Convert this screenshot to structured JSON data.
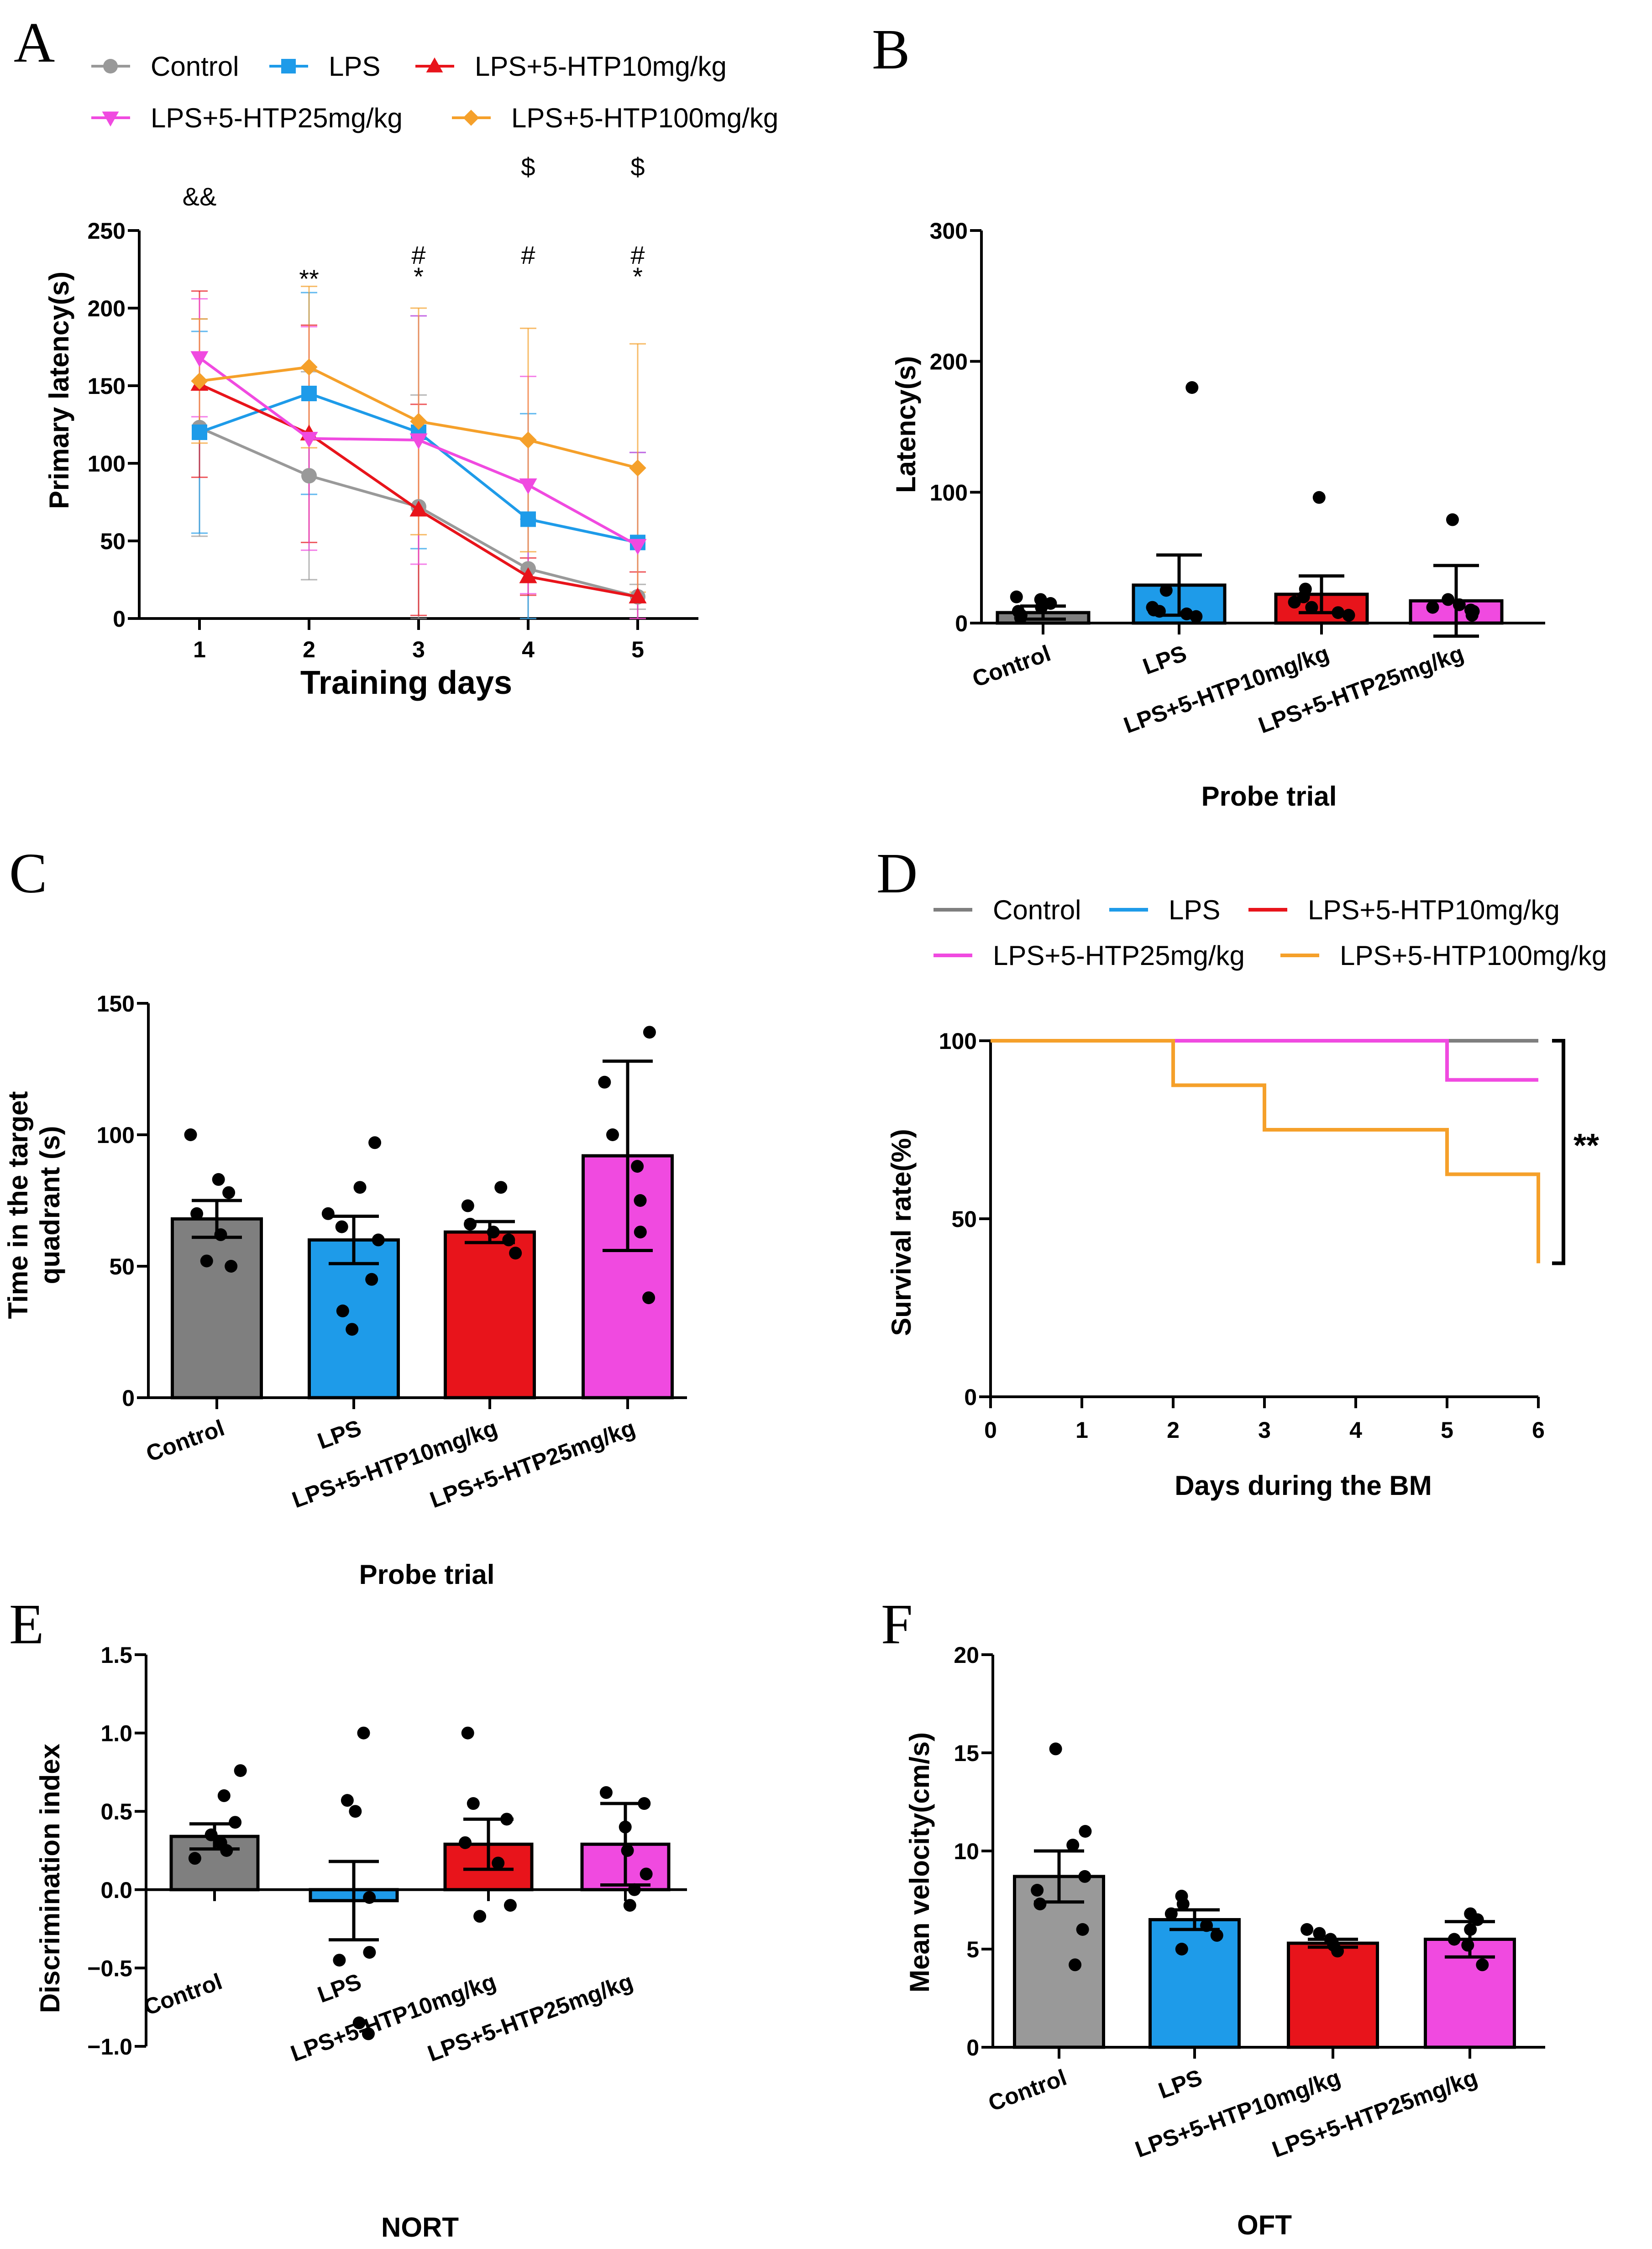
{
  "chart_data": [
    {
      "id": "A",
      "type": "line",
      "panel_label": "A",
      "xlabel": "Training days",
      "ylabel": "Primary latency(s)",
      "ylim": [
        0,
        250
      ],
      "yticks": [
        0,
        50,
        100,
        150,
        200,
        250
      ],
      "x": [
        1,
        2,
        3,
        4,
        5
      ],
      "series": [
        {
          "name": "Control",
          "color": "#999999",
          "marker": "circle",
          "values": [
            123,
            92,
            72,
            32,
            14
          ],
          "err": [
            70,
            67,
            72,
            32,
            8
          ]
        },
        {
          "name": "LPS",
          "color": "#1e9be9",
          "marker": "square",
          "values": [
            120,
            145,
            120,
            64,
            49
          ],
          "err": [
            65,
            65,
            75,
            68,
            58
          ]
        },
        {
          "name": "LPS+5-HTP10mg/kg",
          "color": "#e8141b",
          "marker": "triangle",
          "values": [
            151,
            119,
            70,
            27,
            14
          ],
          "err": [
            60,
            70,
            68,
            12,
            16
          ]
        },
        {
          "name": "LPS+5-HTP25mg/kg",
          "color": "#f04ae0",
          "marker": "triangle-down",
          "values": [
            168,
            116,
            115,
            86,
            47
          ],
          "err": [
            38,
            72,
            80,
            70,
            60
          ]
        },
        {
          "name": "LPS+5-HTP100mg/kg",
          "color": "#f5a02a",
          "marker": "diamond",
          "values": [
            153,
            162,
            127,
            115,
            97
          ],
          "err": [
            40,
            52,
            73,
            72,
            80
          ]
        }
      ],
      "annotations": [
        {
          "x": 1,
          "row": 1,
          "text": "&&"
        },
        {
          "x": 2,
          "row": 2,
          "text": "**"
        },
        {
          "x": 3,
          "row": 2,
          "text": "#"
        },
        {
          "x": 3,
          "row": 3,
          "text": "*"
        },
        {
          "x": 4,
          "row": 0,
          "text": "$"
        },
        {
          "x": 4,
          "row": 2,
          "text": "#"
        },
        {
          "x": 5,
          "row": 0,
          "text": "$"
        },
        {
          "x": 5,
          "row": 2,
          "text": "#"
        },
        {
          "x": 5,
          "row": 3,
          "text": "*"
        }
      ]
    },
    {
      "id": "B",
      "type": "bar",
      "panel_label": "B",
      "xlabel": "Probe trial",
      "ylabel": "Latency(s)",
      "ylim": [
        0,
        300
      ],
      "yticks": [
        0,
        100,
        200,
        300
      ],
      "categories": [
        "Control",
        "LPS",
        "LPS+5-HTP10mg/kg",
        "LPS+5-HTP25mg/kg"
      ],
      "colors": [
        "#7f7f7f",
        "#1e9be9",
        "#e8141b",
        "#f04ae0"
      ],
      "values": [
        8,
        29,
        22,
        17
      ],
      "err": [
        5,
        23,
        14,
        27
      ],
      "points": [
        [
          4,
          6,
          9,
          12,
          15,
          18,
          20
        ],
        [
          5,
          7,
          9,
          10,
          12,
          25,
          180
        ],
        [
          6,
          8,
          12,
          16,
          20,
          26,
          96
        ],
        [
          6,
          9,
          10,
          12,
          14,
          18,
          79
        ]
      ]
    },
    {
      "id": "C",
      "type": "bar",
      "panel_label": "C",
      "xlabel": "Probe trial",
      "ylabel": "Time in the target quadrant (s)",
      "ylabel_lines": [
        "Time in the target",
        "quadrant (s)"
      ],
      "ylim": [
        0,
        150
      ],
      "yticks": [
        0,
        50,
        100,
        150
      ],
      "categories": [
        "Control",
        "LPS",
        "LPS+5-HTP10mg/kg",
        "LPS+5-HTP25mg/kg"
      ],
      "colors": [
        "#7f7f7f",
        "#1e9be9",
        "#e8141b",
        "#f04ae0"
      ],
      "values": [
        68,
        60,
        63,
        92
      ],
      "err": [
        7,
        9,
        4,
        36
      ],
      "points": [
        [
          50,
          52,
          62,
          70,
          78,
          83,
          100
        ],
        [
          26,
          33,
          45,
          60,
          65,
          70,
          80,
          97
        ],
        [
          55,
          60,
          63,
          66,
          73,
          80
        ],
        [
          38,
          63,
          75,
          88,
          100,
          120,
          139
        ]
      ]
    },
    {
      "id": "D",
      "type": "line",
      "subtype": "survival",
      "panel_label": "D",
      "xlabel": "Days during the BM",
      "ylabel": "Survival rate(%)",
      "ylim": [
        0,
        100
      ],
      "yticks": [
        0,
        50,
        100
      ],
      "xlim": [
        0,
        6
      ],
      "xticks": [
        0,
        1,
        2,
        3,
        4,
        5,
        6
      ],
      "series": [
        {
          "name": "Control",
          "color": "#7f7f7f",
          "steps": [
            [
              0,
              100
            ],
            [
              6,
              100
            ]
          ]
        },
        {
          "name": "LPS",
          "color": "#1e9be9",
          "steps": [
            [
              0,
              100
            ],
            [
              6,
              100
            ]
          ]
        },
        {
          "name": "LPS+5-HTP10mg/kg",
          "color": "#e8141b",
          "steps": [
            [
              0,
              100
            ],
            [
              6,
              100
            ]
          ]
        },
        {
          "name": "LPS+5-HTP25mg/kg",
          "color": "#f04ae0",
          "steps": [
            [
              0,
              100
            ],
            [
              5,
              100
            ],
            [
              5,
              89
            ],
            [
              6,
              89
            ]
          ]
        },
        {
          "name": "LPS+5-HTP100mg/kg",
          "color": "#f5a02a",
          "steps": [
            [
              0,
              100
            ],
            [
              2,
              100
            ],
            [
              2,
              87.5
            ],
            [
              3,
              87.5
            ],
            [
              3,
              75
            ],
            [
              5,
              75
            ],
            [
              5,
              62.5
            ],
            [
              6,
              62.5
            ],
            [
              6,
              37.5
            ]
          ]
        }
      ],
      "bracket": {
        "from": 100,
        "to": 37.5,
        "text": "**"
      }
    },
    {
      "id": "E",
      "type": "bar",
      "panel_label": "E",
      "xlabel": "NORT",
      "ylabel": "Discrimination index",
      "ylim": [
        -1.0,
        1.5
      ],
      "yticks": [
        -1.0,
        -0.5,
        0.0,
        0.5,
        1.0,
        1.5
      ],
      "ytick_labels": [
        "−1.0",
        "−0.5",
        "0.0",
        "0.5",
        "1.0",
        "1.5"
      ],
      "categories": [
        "Control",
        "LPS",
        "LPS+5-HTP10mg/kg",
        "LPS+5-HTP25mg/kg"
      ],
      "colors": [
        "#7f7f7f",
        "#1e9be9",
        "#e8141b",
        "#f04ae0"
      ],
      "values": [
        0.34,
        -0.07,
        0.29,
        0.29
      ],
      "err": [
        0.08,
        0.25,
        0.16,
        0.26
      ],
      "points": [
        [
          0.2,
          0.25,
          0.3,
          0.35,
          0.43,
          0.6,
          0.76
        ],
        [
          -0.92,
          -0.85,
          -0.45,
          -0.4,
          -0.05,
          0.5,
          0.57,
          1.0
        ],
        [
          -0.17,
          -0.1,
          0.17,
          0.3,
          0.45,
          0.55,
          1.0
        ],
        [
          -0.1,
          0.0,
          0.1,
          0.25,
          0.4,
          0.55,
          0.62
        ]
      ]
    },
    {
      "id": "F",
      "type": "bar",
      "panel_label": "F",
      "xlabel": "OFT",
      "ylabel": "Mean velocity(cm/s)",
      "ylim": [
        0,
        20
      ],
      "yticks": [
        0,
        5,
        10,
        15,
        20
      ],
      "categories": [
        "Control",
        "LPS",
        "LPS+5-HTP10mg/kg",
        "LPS+5-HTP25mg/kg"
      ],
      "colors": [
        "#999999",
        "#1e9be9",
        "#e8141b",
        "#f04ae0"
      ],
      "values": [
        8.7,
        6.5,
        5.3,
        5.5
      ],
      "err": [
        1.3,
        0.5,
        0.2,
        0.9
      ],
      "points": [
        [
          4.2,
          6.0,
          7.3,
          8.0,
          8.7,
          10.3,
          11.0,
          15.2
        ],
        [
          5.0,
          5.7,
          6.2,
          6.8,
          7.3,
          7.7
        ],
        [
          4.9,
          5.2,
          5.5,
          5.8,
          6.0
        ],
        [
          4.2,
          5.2,
          5.5,
          6.0,
          6.5,
          6.8
        ]
      ]
    }
  ]
}
